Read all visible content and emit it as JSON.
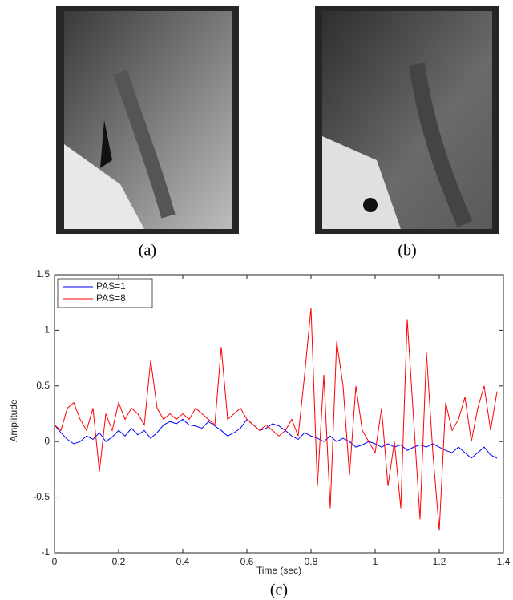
{
  "figure": {
    "captions": [
      "(a)",
      "(b)",
      "(c)"
    ]
  },
  "chart_data": {
    "type": "line",
    "xlabel": "Time (sec)",
    "ylabel": "Amplitude",
    "x": [
      0,
      0.02,
      0.04,
      0.06,
      0.08,
      0.1,
      0.12,
      0.14,
      0.16,
      0.18,
      0.2,
      0.22,
      0.24,
      0.26,
      0.28,
      0.3,
      0.32,
      0.34,
      0.36,
      0.38,
      0.4,
      0.42,
      0.44,
      0.46,
      0.48,
      0.5,
      0.52,
      0.54,
      0.56,
      0.58,
      0.6,
      0.62,
      0.64,
      0.66,
      0.68,
      0.7,
      0.72,
      0.74,
      0.76,
      0.78,
      0.8,
      0.82,
      0.84,
      0.86,
      0.88,
      0.9,
      0.92,
      0.94,
      0.96,
      0.98,
      1.0,
      1.02,
      1.04,
      1.06,
      1.08,
      1.1,
      1.12,
      1.14,
      1.16,
      1.18,
      1.2,
      1.22,
      1.24,
      1.26,
      1.28,
      1.3,
      1.32,
      1.34,
      1.36,
      1.38
    ],
    "series": [
      {
        "name": "PAS=1",
        "color": "#0000ff",
        "values": [
          0.15,
          0.08,
          0.02,
          -0.02,
          0.0,
          0.05,
          0.02,
          0.08,
          0.0,
          0.04,
          0.1,
          0.05,
          0.12,
          0.06,
          0.1,
          0.03,
          0.08,
          0.15,
          0.18,
          0.16,
          0.2,
          0.15,
          0.14,
          0.12,
          0.18,
          0.14,
          0.1,
          0.05,
          0.08,
          0.12,
          0.2,
          0.15,
          0.1,
          0.12,
          0.16,
          0.14,
          0.1,
          0.05,
          0.02,
          0.08,
          0.05,
          0.03,
          0.0,
          0.05,
          0.0,
          0.03,
          0.0,
          -0.05,
          -0.03,
          0.0,
          -0.02,
          -0.05,
          -0.02,
          -0.05,
          -0.03,
          -0.08,
          -0.05,
          -0.03,
          -0.05,
          -0.02,
          -0.05,
          -0.08,
          -0.1,
          -0.05,
          -0.1,
          -0.15,
          -0.1,
          -0.05,
          -0.12,
          -0.15
        ]
      },
      {
        "name": "PAS=8",
        "color": "#ff0000",
        "values": [
          0.15,
          0.1,
          0.3,
          0.35,
          0.2,
          0.1,
          0.3,
          -0.27,
          0.25,
          0.1,
          0.35,
          0.2,
          0.3,
          0.25,
          0.15,
          0.73,
          0.3,
          0.2,
          0.25,
          0.2,
          0.25,
          0.2,
          0.3,
          0.25,
          0.2,
          0.15,
          0.85,
          0.2,
          0.25,
          0.3,
          0.2,
          0.15,
          0.1,
          0.15,
          0.1,
          0.05,
          0.1,
          0.2,
          0.05,
          0.6,
          1.2,
          -0.4,
          0.6,
          -0.6,
          0.9,
          0.5,
          -0.3,
          0.5,
          0.1,
          0.0,
          -0.1,
          0.3,
          -0.4,
          0.0,
          -0.6,
          1.1,
          0.2,
          -0.7,
          0.8,
          -0.1,
          -0.8,
          0.35,
          0.1,
          0.2,
          0.4,
          0.0,
          0.3,
          0.5,
          0.1,
          0.45
        ]
      }
    ],
    "xlim": [
      0,
      1.4
    ],
    "xticks": [
      0,
      0.2,
      0.4,
      0.6,
      0.8,
      1,
      1.2,
      1.4
    ],
    "ylim": [
      -1,
      1.5
    ],
    "yticks": [
      -1,
      -0.5,
      0,
      0.5,
      1,
      1.5
    ],
    "legend": "upper-left"
  }
}
